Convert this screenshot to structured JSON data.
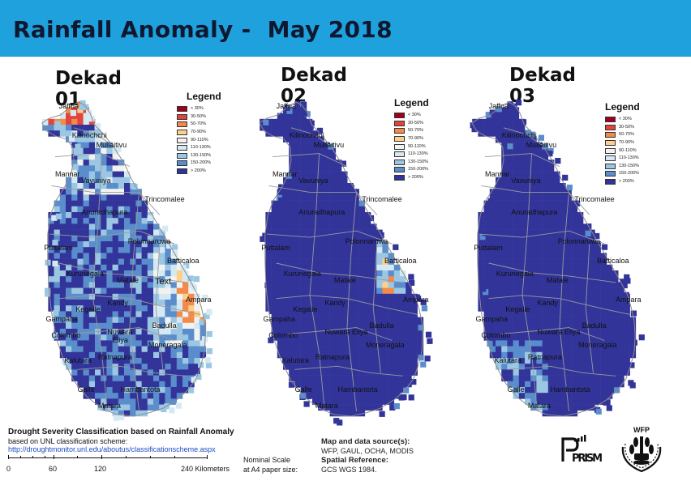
{
  "header": {
    "title": "Rainfall Anomaly -  May 2018"
  },
  "colors": {
    "banner": "#1ea1dc",
    "base": "#32349a",
    "border": "#9a9a9a"
  },
  "legend": {
    "title": "Legend",
    "classes": [
      {
        "label": "< 30%",
        "color": "#a0001e"
      },
      {
        "label": "30-50%",
        "color": "#e0443a"
      },
      {
        "label": "50-70%",
        "color": "#f38a4a"
      },
      {
        "label": "70-90%",
        "color": "#fbcf8c"
      },
      {
        "label": "90-110%",
        "color": "#f2f2ee"
      },
      {
        "label": "110-130%",
        "color": "#d6e9f3"
      },
      {
        "label": "130-150%",
        "color": "#9cc7e3"
      },
      {
        "label": "150-200%",
        "color": "#5a8dcb"
      },
      {
        "label": "> 200%",
        "color": "#32349a"
      }
    ]
  },
  "panels": [
    {
      "id": "d1",
      "title": "Dekad 01",
      "extra_label": "Text"
    },
    {
      "id": "d2",
      "title": "Dekad 02"
    },
    {
      "id": "d3",
      "title": "Dekad 03"
    }
  ],
  "districts": [
    "Jaffna",
    "Kilinochchi",
    "Mullaitivu",
    "Mannar",
    "Vavuniya",
    "Trincomalee",
    "Anuradhapura",
    "Polonnaruwa",
    "Puttalam",
    "Batticaloa",
    "Kurunegala",
    "Matale",
    "Ampara",
    "Kegalle",
    "Kandy",
    "Gampaha",
    "Colombo",
    "Badulla",
    "Nuwara Eliya",
    "Moneragala",
    "Kalutara",
    "Ratnapura",
    "Galle",
    "Hambantota",
    "Matara"
  ],
  "footer": {
    "classification_title": "Drought Severity Classification based on Rainfall Anomaly",
    "based_on": "based on UNL classification scheme:",
    "link": "http://droughtmonitor.unl.edu/aboutus/classificationscheme.aspx",
    "scale_ticks": [
      "0",
      "60",
      "120",
      "240 Kilometers"
    ],
    "nominal_line1": "Nominal Scale",
    "nominal_line2": "at A4 paper size:",
    "source_title": "Map and data source(s):",
    "source_text": "WFP, GAUL, OCHA, MODIS",
    "spatial_title": "Spatial Reference:",
    "spatial_text": "GCS WGS 1984."
  },
  "logos": {
    "prism": "PRISM",
    "wfp": "WFP"
  }
}
